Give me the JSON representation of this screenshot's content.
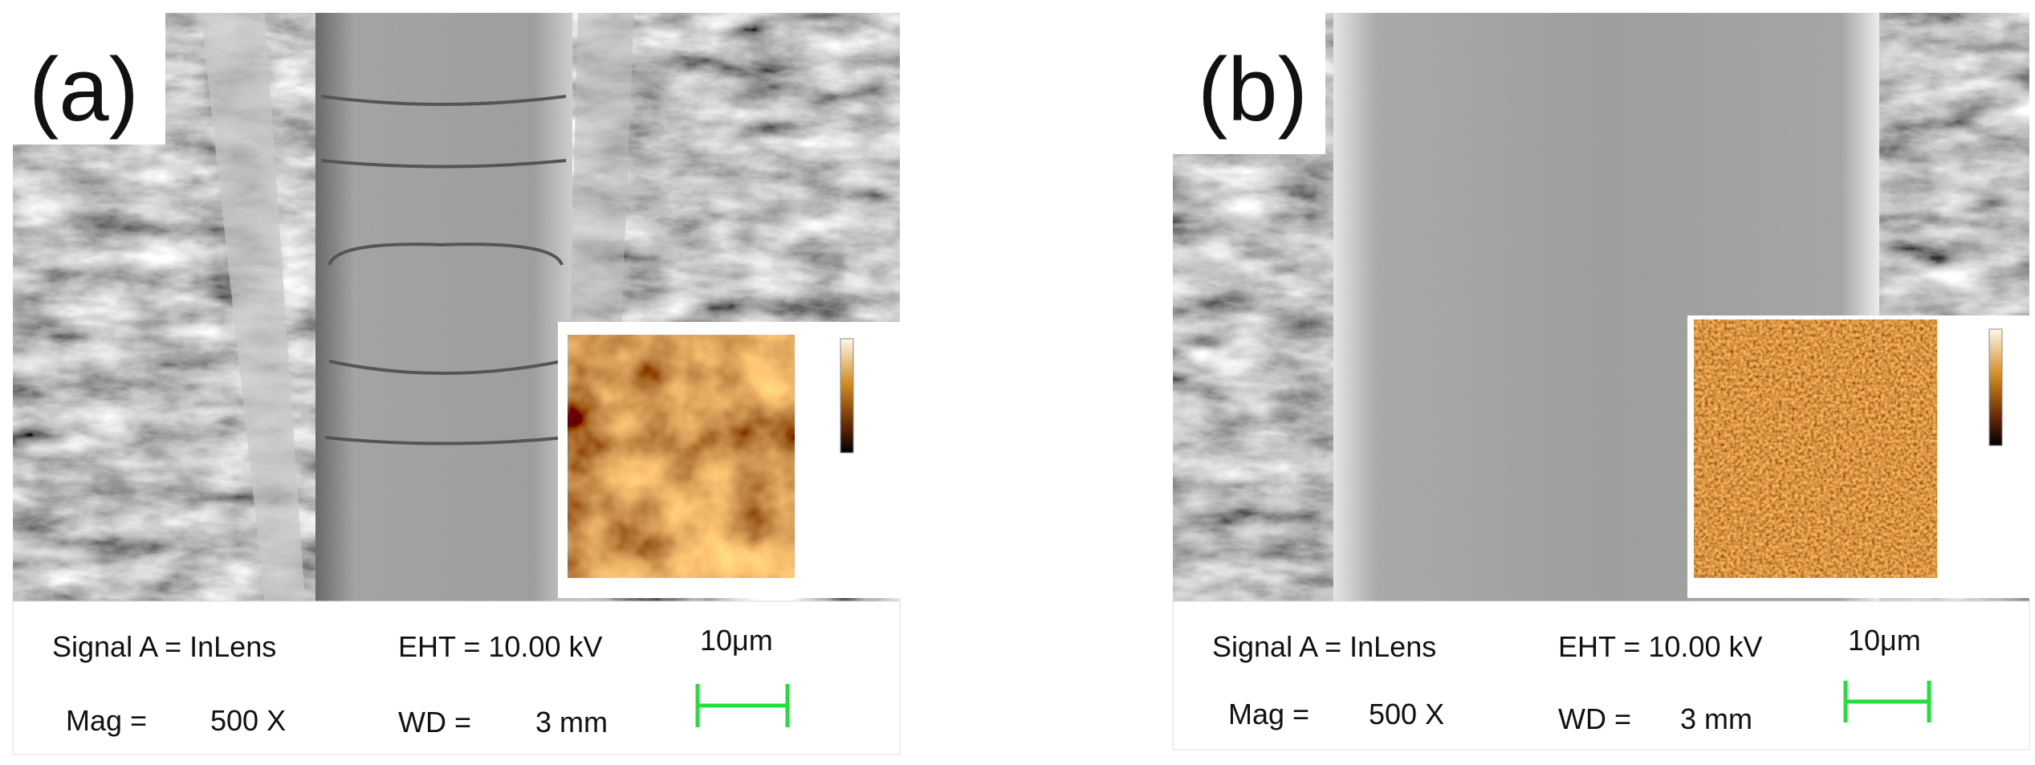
{
  "panels": [
    {
      "label": "(a)",
      "info": {
        "signal": "Signal A = InLens",
        "eht": "EHT = 10.00 kV",
        "scale": "10μm",
        "mag_label": "Mag =",
        "mag_value": "500 X",
        "wd_label": "WD =",
        "wd_value": "3 mm"
      }
    },
    {
      "label": "(b)",
      "info": {
        "signal": "Signal A = InLens",
        "eht": "EHT = 10.00 kV",
        "scale": "10μm",
        "mag_label": "Mag =",
        "mag_value": "500 X",
        "wd_label": "WD =",
        "wd_value": "3 mm"
      }
    }
  ]
}
